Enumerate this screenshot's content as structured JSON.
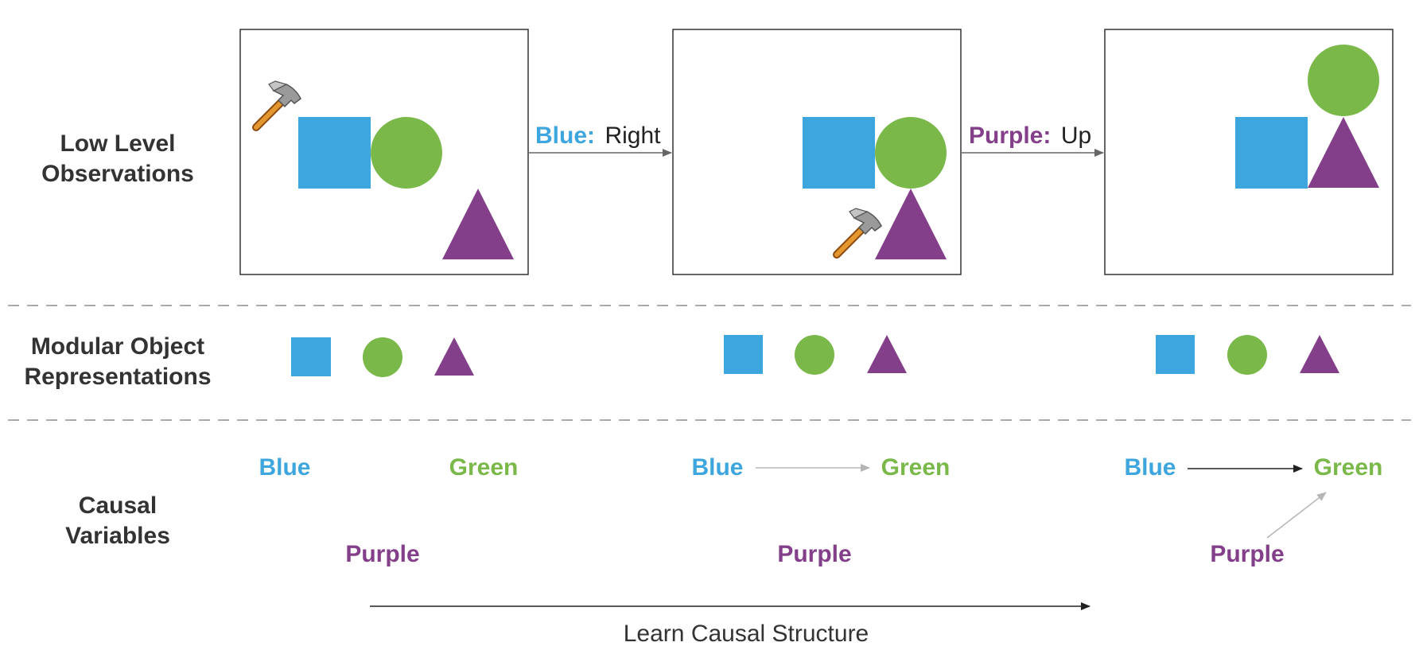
{
  "colors": {
    "blue": "#3ea6df",
    "green": "#7ab84a",
    "purple": "#843f8a",
    "frame": "#333333",
    "divider": "#aaaaaa"
  },
  "rows": {
    "observations": [
      "Low Level",
      "Observations"
    ],
    "representations": [
      "Modular Object",
      "Representations"
    ],
    "causal": [
      "Causal",
      "Variables"
    ]
  },
  "actions": [
    {
      "color_name": "Blue:",
      "direction": "Right"
    },
    {
      "color_name": "Purple:",
      "direction": "Up"
    }
  ],
  "variables": {
    "blue": "Blue",
    "green": "Green",
    "purple": "Purple"
  },
  "icons": {
    "tool": "hammer-icon",
    "arrow": "arrow-right-icon"
  },
  "footer": {
    "label": "Learn Causal Structure"
  }
}
